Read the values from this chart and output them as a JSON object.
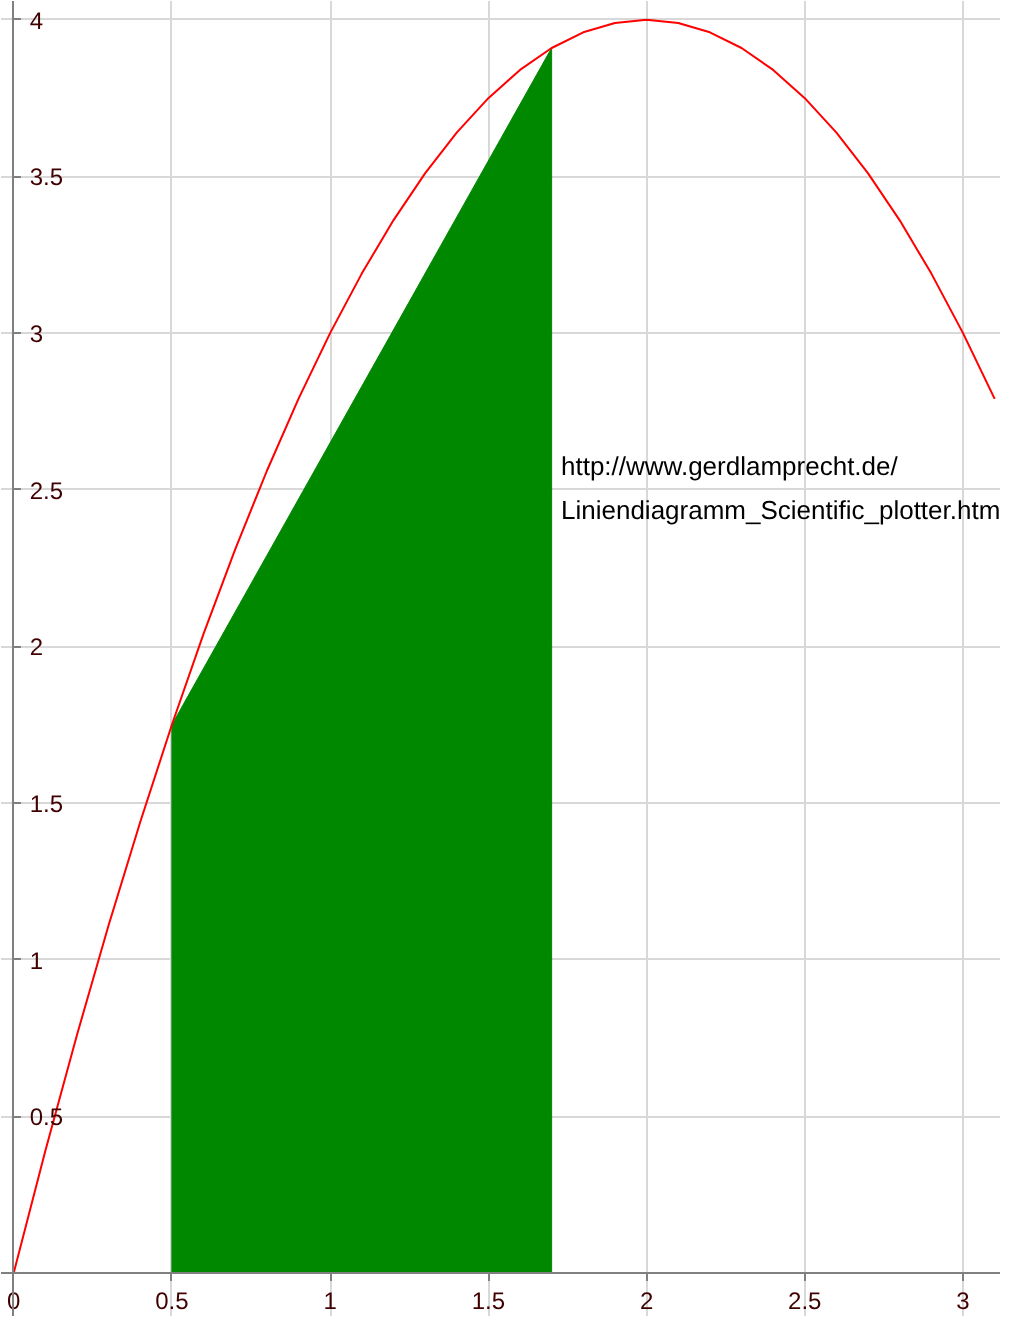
{
  "chart_data": {
    "type": "line",
    "xlim": [
      -0.04,
      3.12
    ],
    "ylim": [
      -0.14,
      4.06
    ],
    "xticks": [
      0,
      0.5,
      1,
      1.5,
      2,
      2.5,
      3
    ],
    "yticks": [
      {
        "value": 0,
        "label": null
      },
      0.5,
      1,
      1.5,
      2,
      2.5,
      3,
      3.5,
      4
    ],
    "grid": true,
    "marker": "none",
    "line_style": "solid",
    "series": [
      {
        "type": "area",
        "color": "#008800",
        "x": [
          0.5,
          1.7
        ],
        "values": [
          1.75,
          3.91
        ]
      },
      {
        "color": "#ff0000",
        "x": [
          0,
          0.1,
          0.2,
          0.3,
          0.4,
          0.5,
          0.6,
          0.7,
          0.8,
          0.9,
          1,
          1.1,
          1.2,
          1.3,
          1.4,
          1.5,
          1.6,
          1.7,
          1.8,
          1.9,
          2,
          2.1,
          2.2,
          2.3,
          2.4,
          2.5,
          2.6,
          2.7,
          2.8,
          2.9,
          3,
          3.1
        ],
        "values": [
          0,
          0.39,
          0.76,
          1.11,
          1.44,
          1.75,
          2.04,
          2.31,
          2.56,
          2.79,
          3,
          3.19,
          3.36,
          3.51,
          3.64,
          3.75,
          3.84,
          3.91,
          3.96,
          3.99,
          4,
          3.99,
          3.96,
          3.91,
          3.84,
          3.75,
          3.64,
          3.51,
          3.36,
          3.19,
          3,
          2.79
        ]
      }
    ],
    "annotations": [
      "http://www.gerdlamprecht.de/",
      "Liniendiagramm_Scientific_plotter.htm"
    ]
  }
}
